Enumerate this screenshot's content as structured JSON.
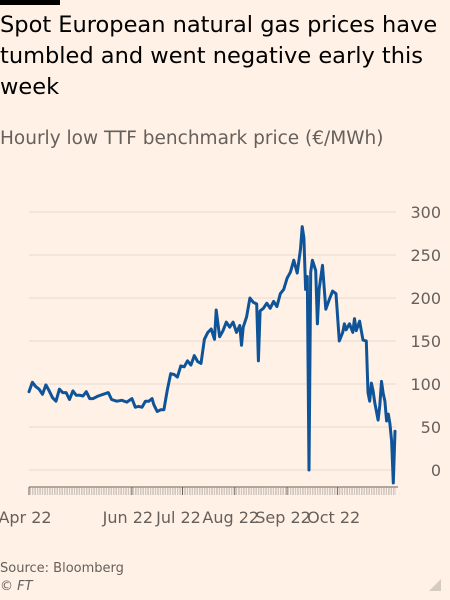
{
  "title": "Spot European natural gas prices have tumbled and went negative early this week",
  "subtitle": "Hourly low TTF benchmark price (€/MWh)",
  "source": "Source: Bloomberg",
  "copyright": "© FT",
  "colors": {
    "background": "#fff1e5",
    "line": "#0f5499",
    "grid": "#e4dcd4",
    "axis": "#66605c",
    "top_rule": "#000000"
  },
  "chart_data": {
    "type": "line",
    "title": "Spot European natural gas prices have tumbled and went negative early this week",
    "subtitle": "Hourly low TTF benchmark price (€/MWh)",
    "xlabel": "",
    "ylabel": "",
    "x_type": "date",
    "xlim": [
      "2022-04-01",
      "2022-11-04"
    ],
    "ylim": [
      -15,
      305
    ],
    "y_ticks": [
      300,
      250,
      200,
      150,
      100,
      50,
      0
    ],
    "x_ticks": [
      {
        "label": "Apr 22",
        "date": "2022-04-01"
      },
      {
        "label": "Jun 22",
        "date": "2022-06-01"
      },
      {
        "label": "Jul 22",
        "date": "2022-07-01"
      },
      {
        "label": "Aug 22",
        "date": "2022-08-01"
      },
      {
        "label": "Sep 22",
        "date": "2022-09-01"
      },
      {
        "label": "Oct 22",
        "date": "2022-10-01"
      }
    ],
    "grid": true,
    "legend": "none",
    "series": [
      {
        "points": [
          [
            "2022-04-01",
            91
          ],
          [
            "2022-04-03",
            102
          ],
          [
            "2022-04-05",
            97
          ],
          [
            "2022-04-07",
            94
          ],
          [
            "2022-04-09",
            88
          ],
          [
            "2022-04-11",
            99
          ],
          [
            "2022-04-13",
            92
          ],
          [
            "2022-04-15",
            84
          ],
          [
            "2022-04-17",
            80
          ],
          [
            "2022-04-19",
            94
          ],
          [
            "2022-04-21",
            90
          ],
          [
            "2022-04-23",
            90
          ],
          [
            "2022-04-25",
            82
          ],
          [
            "2022-04-27",
            92
          ],
          [
            "2022-04-29",
            87
          ],
          [
            "2022-05-01",
            87
          ],
          [
            "2022-05-03",
            86
          ],
          [
            "2022-05-05",
            91
          ],
          [
            "2022-05-07",
            83
          ],
          [
            "2022-05-09",
            83
          ],
          [
            "2022-05-12",
            86
          ],
          [
            "2022-05-15",
            88
          ],
          [
            "2022-05-18",
            90
          ],
          [
            "2022-05-20",
            82
          ],
          [
            "2022-05-23",
            80
          ],
          [
            "2022-05-26",
            81
          ],
          [
            "2022-05-29",
            79
          ],
          [
            "2022-06-01",
            83
          ],
          [
            "2022-06-03",
            73
          ],
          [
            "2022-06-05",
            74
          ],
          [
            "2022-06-07",
            73
          ],
          [
            "2022-06-09",
            80
          ],
          [
            "2022-06-11",
            80
          ],
          [
            "2022-06-13",
            83
          ],
          [
            "2022-06-14",
            76
          ],
          [
            "2022-06-16",
            68
          ],
          [
            "2022-06-18",
            70
          ],
          [
            "2022-06-20",
            70
          ],
          [
            "2022-06-22",
            93
          ],
          [
            "2022-06-24",
            112
          ],
          [
            "2022-06-26",
            111
          ],
          [
            "2022-06-28",
            108
          ],
          [
            "2022-06-30",
            121
          ],
          [
            "2022-07-02",
            120
          ],
          [
            "2022-07-04",
            127
          ],
          [
            "2022-07-06",
            122
          ],
          [
            "2022-07-08",
            133
          ],
          [
            "2022-07-10",
            126
          ],
          [
            "2022-07-12",
            124
          ],
          [
            "2022-07-14",
            152
          ],
          [
            "2022-07-16",
            160
          ],
          [
            "2022-07-18",
            164
          ],
          [
            "2022-07-20",
            152
          ],
          [
            "2022-07-21",
            186
          ],
          [
            "2022-07-23",
            155
          ],
          [
            "2022-07-25",
            162
          ],
          [
            "2022-07-27",
            172
          ],
          [
            "2022-07-29",
            166
          ],
          [
            "2022-07-31",
            172
          ],
          [
            "2022-08-02",
            160
          ],
          [
            "2022-08-04",
            168
          ],
          [
            "2022-08-05",
            145
          ],
          [
            "2022-08-06",
            166
          ],
          [
            "2022-08-08",
            178
          ],
          [
            "2022-08-10",
            200
          ],
          [
            "2022-08-12",
            195
          ],
          [
            "2022-08-14",
            193
          ],
          [
            "2022-08-15",
            127
          ],
          [
            "2022-08-16",
            185
          ],
          [
            "2022-08-18",
            188
          ],
          [
            "2022-08-20",
            194
          ],
          [
            "2022-08-22",
            188
          ],
          [
            "2022-08-24",
            196
          ],
          [
            "2022-08-26",
            190
          ],
          [
            "2022-08-28",
            205
          ],
          [
            "2022-08-30",
            210
          ],
          [
            "2022-09-01",
            223
          ],
          [
            "2022-09-03",
            230
          ],
          [
            "2022-09-05",
            244
          ],
          [
            "2022-09-07",
            229
          ],
          [
            "2022-09-09",
            257
          ],
          [
            "2022-09-10",
            283
          ],
          [
            "2022-09-11",
            270
          ],
          [
            "2022-09-12",
            210
          ],
          [
            "2022-09-13",
            225
          ],
          [
            "2022-09-14",
            0
          ],
          [
            "2022-09-15",
            230
          ],
          [
            "2022-09-16",
            244
          ],
          [
            "2022-09-18",
            232
          ],
          [
            "2022-09-19",
            170
          ],
          [
            "2022-09-20",
            210
          ],
          [
            "2022-09-22",
            238
          ],
          [
            "2022-09-24",
            187
          ],
          [
            "2022-09-26",
            198
          ],
          [
            "2022-09-28",
            208
          ],
          [
            "2022-09-30",
            205
          ],
          [
            "2022-10-02",
            150
          ],
          [
            "2022-10-04",
            160
          ],
          [
            "2022-10-05",
            170
          ],
          [
            "2022-10-06",
            163
          ],
          [
            "2022-10-08",
            170
          ],
          [
            "2022-10-10",
            160
          ],
          [
            "2022-10-11",
            176
          ],
          [
            "2022-10-12",
            162
          ],
          [
            "2022-10-14",
            173
          ],
          [
            "2022-10-16",
            151
          ],
          [
            "2022-10-18",
            150
          ],
          [
            "2022-10-19",
            90
          ],
          [
            "2022-10-20",
            80
          ],
          [
            "2022-10-21",
            101
          ],
          [
            "2022-10-22",
            92
          ],
          [
            "2022-10-23",
            78
          ],
          [
            "2022-10-25",
            58
          ],
          [
            "2022-10-26",
            75
          ],
          [
            "2022-10-27",
            103
          ],
          [
            "2022-10-28",
            89
          ],
          [
            "2022-10-29",
            80
          ],
          [
            "2022-10-30",
            57
          ],
          [
            "2022-10-31",
            65
          ],
          [
            "2022-11-01",
            54
          ],
          [
            "2022-11-02",
            34
          ],
          [
            "2022-11-03",
            -15
          ],
          [
            "2022-11-04",
            45
          ]
        ]
      }
    ]
  }
}
